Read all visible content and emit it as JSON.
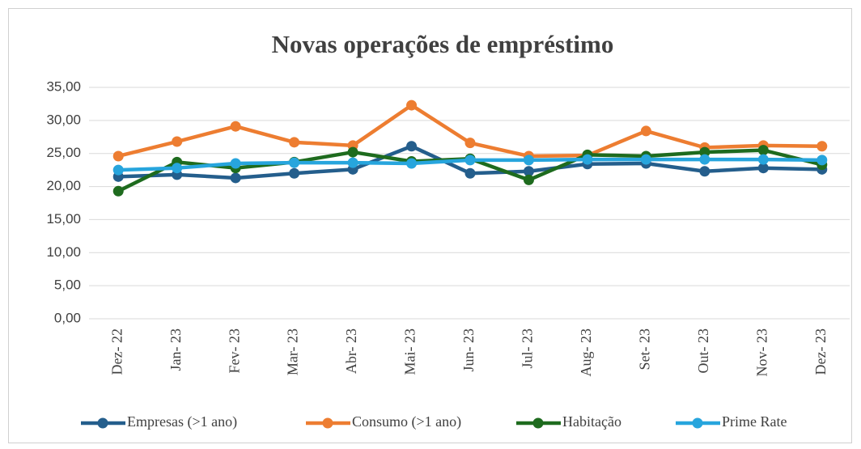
{
  "chart_data": {
    "type": "line",
    "title": "Novas operações de empréstimo",
    "categories": [
      "Dez- 22",
      "Jan- 23",
      "Fev- 23",
      "Mar- 23",
      "Abr- 23",
      "Mai- 23",
      "Jun- 23",
      "Jul- 23",
      "Aug- 23",
      "Set- 23",
      "Out- 23",
      "Nov- 23",
      "Dez- 23"
    ],
    "series": [
      {
        "name": "Empresas (>1 ano)",
        "color": "#245e8c",
        "values": [
          21.5,
          21.8,
          21.3,
          22.0,
          22.6,
          26.1,
          22.0,
          22.3,
          23.4,
          23.5,
          22.3,
          22.8,
          22.6
        ]
      },
      {
        "name": "Consumo (>1 ano)",
        "color": "#ed7d31",
        "values": [
          24.6,
          26.8,
          29.1,
          26.7,
          26.2,
          32.3,
          26.6,
          24.6,
          24.7,
          28.4,
          25.9,
          26.2,
          26.1
        ]
      },
      {
        "name": "Habitação",
        "color": "#1e6b1e",
        "values": [
          19.3,
          23.7,
          22.8,
          23.7,
          25.2,
          23.8,
          24.2,
          21.0,
          24.8,
          24.6,
          25.2,
          25.5,
          23.3
        ]
      },
      {
        "name": "Prime Rate",
        "color": "#27a5dd",
        "values": [
          22.5,
          22.8,
          23.5,
          23.6,
          23.6,
          23.5,
          24.0,
          24.0,
          24.1,
          24.1,
          24.1,
          24.1,
          24.0
        ]
      }
    ],
    "ylim": [
      0,
      35
    ],
    "yticks": [
      {
        "value": 0,
        "label": "0,00"
      },
      {
        "value": 5,
        "label": "5,00"
      },
      {
        "value": 10,
        "label": "10,00"
      },
      {
        "value": 15,
        "label": "15,00"
      },
      {
        "value": 20,
        "label": "20,00"
      },
      {
        "value": 25,
        "label": "25,00"
      },
      {
        "value": 30,
        "label": "30,00"
      },
      {
        "value": 35,
        "label": "35,00"
      }
    ],
    "grid": true,
    "legend": "bottom"
  }
}
